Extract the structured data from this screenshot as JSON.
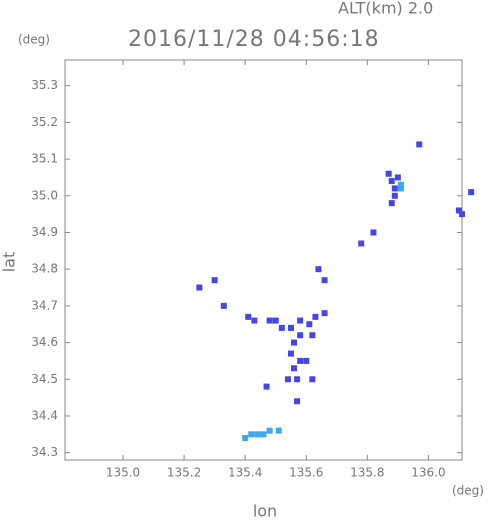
{
  "chart_data": {
    "type": "scatter",
    "title": "2016/11/28 04:56:18",
    "subtitle": "ALT(km) 2.0",
    "x_label": "lon",
    "y_label": "lat",
    "x_unit": "(deg)",
    "y_unit": "(deg)",
    "xlim": [
      134.81,
      136.11
    ],
    "ylim": [
      34.28,
      35.37
    ],
    "xticks": [
      {
        "value": 135.0,
        "label": "135.0"
      },
      135.2,
      135.4,
      135.6,
      135.8,
      {
        "value": 136.0,
        "label": "136.0"
      }
    ],
    "yticks": [
      34.3,
      34.4,
      34.5,
      34.6,
      34.7,
      34.8,
      34.9,
      {
        "value": 35.0,
        "label": "35.0"
      },
      35.1,
      35.2,
      35.3
    ],
    "series": [
      {
        "color": "#4646e6",
        "x": [
          135.87,
          135.88,
          135.89,
          135.9,
          135.89,
          135.88,
          135.97,
          136.14,
          136.1,
          136.11,
          135.78,
          135.82,
          135.64,
          135.66,
          135.25,
          135.3,
          135.33,
          135.41,
          135.43,
          135.48,
          135.5,
          135.52,
          135.55,
          135.58,
          135.61,
          135.63,
          135.66,
          135.58,
          135.62,
          135.56,
          135.55,
          135.58,
          135.56,
          135.54,
          135.57,
          135.62,
          135.47,
          135.57,
          135.6
        ],
        "values": [
          35.06,
          35.04,
          35.02,
          35.05,
          35.0,
          34.98,
          35.14,
          35.01,
          34.96,
          34.95,
          34.87,
          34.9,
          34.8,
          34.77,
          34.75,
          34.77,
          34.7,
          34.67,
          34.66,
          34.66,
          34.66,
          34.64,
          34.64,
          34.66,
          34.65,
          34.67,
          34.68,
          34.62,
          34.62,
          34.6,
          34.57,
          34.55,
          34.53,
          34.5,
          34.5,
          34.5,
          34.48,
          34.44,
          34.55
        ]
      },
      {
        "color": "#3ca8f0",
        "x": [
          135.91,
          135.91,
          135.4,
          135.42,
          135.44,
          135.46,
          135.48,
          135.51
        ],
        "values": [
          35.03,
          35.02,
          34.34,
          34.35,
          34.35,
          34.35,
          34.36,
          34.36
        ]
      }
    ]
  }
}
